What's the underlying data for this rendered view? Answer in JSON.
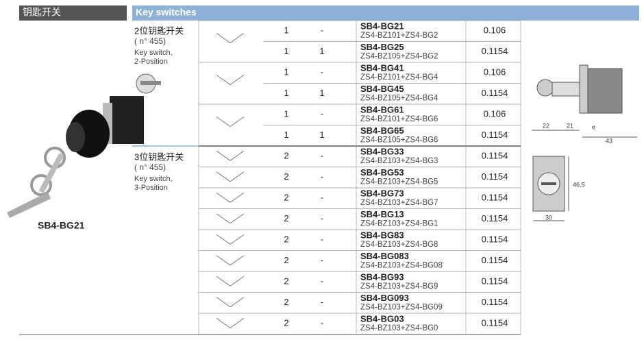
{
  "header": {
    "left_title": "钥匙开关",
    "right_title": "Key switches"
  },
  "groups": [
    {
      "title_cn": "2位钥匙开关",
      "note": "( n° 455)",
      "title_en": [
        "Key switch,",
        "2-Position"
      ]
    },
    {
      "title_cn": "3位钥匙开关",
      "note": "( n° 455)",
      "title_en": [
        "Key switch,",
        "3-Position"
      ]
    }
  ],
  "product_label": "SB4-BG21",
  "table": {
    "rows": [
      [
        1,
        "-",
        "SB4-BG21",
        "ZS4-BZ101+ZS4-BG2",
        0.106
      ],
      [
        1,
        1,
        "SB4-BG25",
        "ZS4-BZ105+ZS4-BG2",
        0.1154
      ],
      [
        1,
        "-",
        "SB4-BG41",
        "ZS4-BZ101+ZS4-BG4",
        0.106
      ],
      [
        1,
        1,
        "SB4-BG45",
        "ZS4-BZ105+ZS4-BG4",
        0.1154
      ],
      [
        1,
        "-",
        "SB4-BG61",
        "ZS4-BZ101+ZS4-BG6",
        0.106
      ],
      [
        1,
        1,
        "SB4-BG65",
        "ZS4-BZ105+ZS4-BG6",
        0.1154
      ],
      [
        2,
        "-",
        "SB4-BG33",
        "ZS4-BZ103+ZS4-BG3",
        0.1154
      ],
      [
        2,
        "-",
        "SB4-BG53",
        "ZS4-BZ103+ZS4-BG5",
        0.1154
      ],
      [
        2,
        "-",
        "SB4-BG73",
        "ZS4-BZ103+ZS4-BG7",
        0.1154
      ],
      [
        2,
        "-",
        "SB4-BG13",
        "ZS4-BZ103+ZS4-BG1",
        0.1154
      ],
      [
        2,
        "-",
        "SB4-BG83",
        "ZS4-BZ103+ZS4-BG8",
        0.1154
      ],
      [
        2,
        "-",
        "SB4-BG083",
        "ZS4-BZ103+ZS4-BG08",
        0.1154
      ],
      [
        2,
        "-",
        "SB4-BG93",
        "ZS4-BZ103+ZS4-BG9",
        0.1154
      ],
      [
        2,
        "-",
        "SB4-BG093",
        "ZS4-BZ103+ZS4-BG09",
        0.1154
      ],
      [
        2,
        "-",
        "SB4-BG03",
        "ZS4-BZ103+ZS4-BG0",
        0.1154
      ]
    ]
  },
  "dimensions": {
    "side": [
      "22",
      "21",
      "e",
      "43"
    ],
    "front": [
      "46,5",
      "30"
    ]
  }
}
